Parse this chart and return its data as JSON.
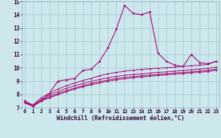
{
  "title": "",
  "xlabel": "Windchill (Refroidissement éolien,°C)",
  "ylabel": "",
  "bg_color": "#cce8ed",
  "grid_color": "#aacfd6",
  "line_color": "#aa1177",
  "xmin": 0,
  "xmax": 23,
  "ymin": 7,
  "ymax": 15,
  "x_ticks": [
    0,
    1,
    2,
    3,
    4,
    5,
    6,
    7,
    8,
    9,
    10,
    11,
    12,
    13,
    14,
    15,
    16,
    17,
    18,
    19,
    20,
    21,
    22,
    23
  ],
  "y_ticks": [
    7,
    8,
    9,
    10,
    11,
    12,
    13,
    14,
    15
  ],
  "line1": {
    "x": [
      0,
      1,
      2,
      3,
      4,
      5,
      6,
      7,
      8,
      9,
      10,
      11,
      12,
      13,
      14,
      15,
      16,
      17,
      18,
      19,
      20,
      21,
      22,
      23
    ],
    "y": [
      7.5,
      7.1,
      7.5,
      8.1,
      9.0,
      9.1,
      9.2,
      9.8,
      9.9,
      10.5,
      11.5,
      12.9,
      14.7,
      14.1,
      14.0,
      14.2,
      11.1,
      10.5,
      10.2,
      10.1,
      11.0,
      10.4,
      10.3,
      10.5
    ]
  },
  "line2": {
    "x": [
      0,
      1,
      2,
      3,
      4,
      5,
      6,
      7,
      8,
      9,
      10,
      11,
      12,
      13,
      14,
      15,
      16,
      17,
      18,
      19,
      20,
      21,
      22,
      23
    ],
    "y": [
      7.5,
      7.2,
      7.75,
      8.1,
      8.4,
      8.65,
      8.85,
      9.05,
      9.2,
      9.4,
      9.55,
      9.65,
      9.75,
      9.82,
      9.88,
      9.93,
      9.97,
      10.0,
      10.05,
      10.1,
      10.15,
      10.2,
      10.25,
      10.5
    ]
  },
  "line3": {
    "x": [
      0,
      1,
      2,
      3,
      4,
      5,
      6,
      7,
      8,
      9,
      10,
      11,
      12,
      13,
      14,
      15,
      16,
      17,
      18,
      19,
      20,
      21,
      22,
      23
    ],
    "y": [
      7.4,
      7.2,
      7.6,
      7.95,
      8.2,
      8.45,
      8.65,
      8.82,
      8.98,
      9.12,
      9.25,
      9.35,
      9.44,
      9.5,
      9.55,
      9.6,
      9.65,
      9.7,
      9.75,
      9.8,
      9.85,
      9.9,
      9.95,
      10.05
    ]
  },
  "line4": {
    "x": [
      0,
      1,
      2,
      3,
      4,
      5,
      6,
      7,
      8,
      9,
      10,
      11,
      12,
      13,
      14,
      15,
      16,
      17,
      18,
      19,
      20,
      21,
      22,
      23
    ],
    "y": [
      7.4,
      7.15,
      7.55,
      7.82,
      8.05,
      8.28,
      8.48,
      8.65,
      8.82,
      8.96,
      9.08,
      9.18,
      9.27,
      9.34,
      9.4,
      9.45,
      9.5,
      9.55,
      9.6,
      9.65,
      9.7,
      9.75,
      9.8,
      9.9
    ]
  },
  "line5": {
    "x": [
      0,
      1,
      2,
      3,
      4,
      5,
      6,
      7,
      8,
      9,
      10,
      11,
      12,
      13,
      14,
      15,
      16,
      17,
      18,
      19,
      20,
      21,
      22,
      23
    ],
    "y": [
      7.35,
      7.1,
      7.5,
      7.75,
      7.98,
      8.2,
      8.4,
      8.57,
      8.73,
      8.87,
      8.99,
      9.1,
      9.18,
      9.25,
      9.31,
      9.37,
      9.42,
      9.47,
      9.52,
      9.57,
      9.62,
      9.67,
      9.72,
      9.82
    ]
  }
}
